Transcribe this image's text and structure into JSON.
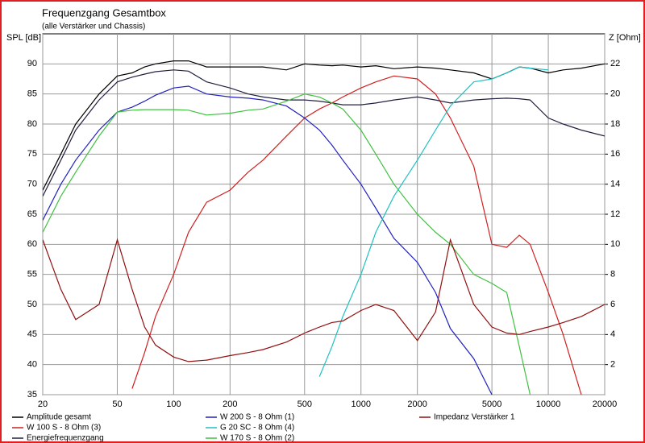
{
  "chart_data": {
    "type": "line",
    "title": "Frequenzgang Gesamtbox",
    "subtitle": "(alle Verstärker und Chassis)",
    "y_label": "SPL [dB]",
    "y2_label": "Z [Ohm]",
    "log_x": true,
    "grid": true,
    "x": [
      20,
      25,
      30,
      40,
      50,
      60,
      70,
      80,
      100,
      120,
      150,
      200,
      250,
      300,
      400,
      500,
      600,
      700,
      800,
      1000,
      1200,
      1500,
      2000,
      2500,
      3000,
      4000,
      5000,
      6000,
      7000,
      8000,
      10000,
      12000,
      15000,
      20000
    ],
    "xlim": [
      20,
      20000
    ],
    "xticks": [
      20,
      50,
      100,
      200,
      500,
      1000,
      2000,
      5000,
      10000,
      20000
    ],
    "ylim": [
      35,
      95
    ],
    "yticks": [
      35,
      40,
      45,
      50,
      55,
      60,
      65,
      70,
      75,
      80,
      85,
      90
    ],
    "y2lim": [
      0,
      24
    ],
    "y2ticks": [
      2,
      4,
      6,
      8,
      10,
      12,
      14,
      16,
      18,
      20,
      22
    ],
    "series": [
      {
        "name": "Amplitude gesamt",
        "color": "#000000",
        "values": [
          69,
          75,
          80,
          85,
          88,
          88.5,
          89.5,
          90,
          90.5,
          90.5,
          89.5,
          89.5,
          89.5,
          89.5,
          89,
          90,
          89.8,
          89.7,
          89.8,
          89.5,
          89.7,
          89.2,
          89.5,
          89.3,
          89,
          88.5,
          87.5,
          88.5,
          89.5,
          89.3,
          88.5,
          89,
          89.3,
          90
        ]
      },
      {
        "name": "W 100 S - 8 Ohm (3)",
        "color": "#d02020",
        "values": [
          null,
          null,
          null,
          null,
          null,
          36,
          42,
          48,
          55,
          62,
          67,
          69,
          72,
          74,
          78,
          81,
          82.5,
          83.5,
          84.5,
          86,
          87,
          88,
          87.5,
          85,
          81,
          73,
          60,
          59.5,
          61.5,
          60,
          52,
          45,
          35,
          null
        ]
      },
      {
        "name": "Energiefrequenzgang",
        "color": "#202040",
        "values": [
          68,
          74,
          79,
          84,
          87,
          87.8,
          88.3,
          88.7,
          89,
          88.8,
          87,
          86,
          85,
          84.5,
          84,
          84,
          83.8,
          83.5,
          83.2,
          83.2,
          83.5,
          84,
          84.5,
          84,
          83.5,
          84,
          84.2,
          84.3,
          84.2,
          84,
          81,
          80,
          79,
          78
        ]
      },
      {
        "name": "W 200 S - 8 Ohm (1)",
        "color": "#2020c0",
        "values": [
          64,
          70,
          74,
          79,
          82,
          82.8,
          83.8,
          84.8,
          86,
          86.3,
          85,
          84.5,
          84.3,
          84,
          83,
          81,
          79,
          76.5,
          74,
          70,
          66,
          61,
          57,
          52,
          46,
          41,
          35,
          null,
          null,
          null,
          null,
          null,
          null,
          null
        ]
      },
      {
        "name": "G 20 SC - 8 Ohm (4)",
        "color": "#20c0c0",
        "values": [
          null,
          null,
          null,
          null,
          null,
          null,
          null,
          null,
          null,
          null,
          null,
          null,
          null,
          null,
          null,
          null,
          38,
          43,
          48,
          55,
          62,
          68,
          74,
          79,
          83,
          87,
          87.5,
          88.5,
          89.5,
          89.3,
          89,
          null,
          null,
          null
        ]
      },
      {
        "name": "W 170 S - 8 Ohm (2)",
        "color": "#40c040",
        "values": [
          62,
          68,
          72,
          78,
          82,
          82.3,
          82.4,
          82.4,
          82.4,
          82.3,
          81.5,
          81.8,
          82.3,
          82.5,
          83.8,
          85,
          84.5,
          83.5,
          82.5,
          79,
          75,
          70,
          65,
          62,
          60,
          55,
          53.5,
          52,
          43,
          35,
          null,
          null,
          null,
          null
        ]
      },
      {
        "name": "Impedanz Verstärker 1",
        "color": "#901010",
        "axis": "y2",
        "values": [
          10.3,
          7,
          5,
          6,
          10.3,
          7,
          4.5,
          3.3,
          2.5,
          2.2,
          2.3,
          2.6,
          2.8,
          3,
          3.5,
          4.1,
          4.5,
          4.8,
          4.9,
          5.6,
          6,
          5.6,
          3.6,
          5.5,
          10.3,
          6,
          4.5,
          4.1,
          4,
          4.2,
          4.5,
          4.8,
          5.2,
          6
        ]
      }
    ]
  }
}
